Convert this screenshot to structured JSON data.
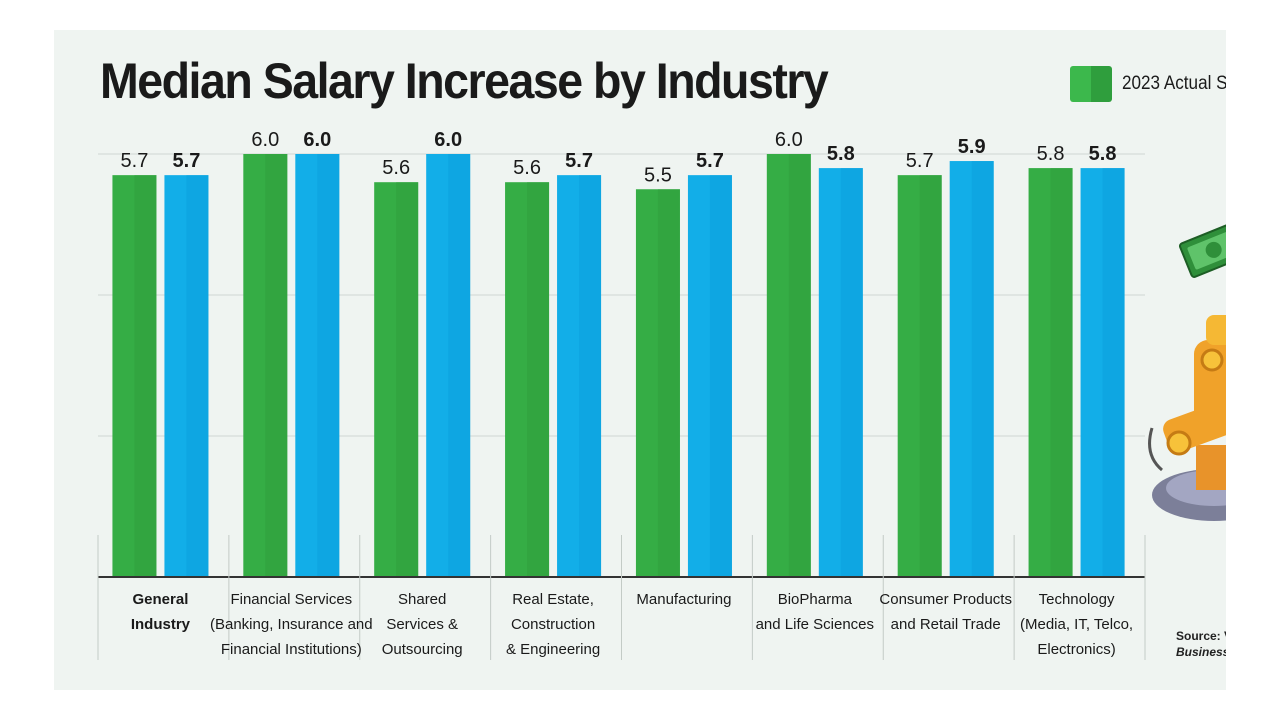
{
  "chart_data": {
    "type": "bar",
    "title": "Median Salary Increase by Industry",
    "categories": [
      [
        "General",
        "Industry"
      ],
      [
        "Financial Services",
        "(Banking, Insurance and",
        "Financial Institutions)"
      ],
      [
        "Shared",
        "Services &",
        "Outsourcing"
      ],
      [
        "Real Estate,",
        "Construction",
        "& Engineering"
      ],
      [
        "Manufacturing"
      ],
      [
        "BioPharma",
        "and Life Sciences"
      ],
      [
        "Consumer Products",
        "and Retail Trade"
      ],
      [
        "Technology",
        "(Media, IT, Telco,",
        "Electronics)"
      ]
    ],
    "series": [
      {
        "name": "2023 Actual S",
        "color": "#35ad45",
        "values": [
          5.7,
          6.0,
          5.6,
          5.6,
          5.5,
          6.0,
          5.7,
          5.8
        ],
        "labels": [
          "5.7",
          "6.0",
          "5.6",
          "5.6",
          "5.5",
          "6.0",
          "5.7",
          "5.8"
        ]
      },
      {
        "name": "",
        "color": "#12aee8",
        "values": [
          5.7,
          6.0,
          6.0,
          5.7,
          5.7,
          5.8,
          5.9,
          5.8
        ],
        "labels": [
          "5.7",
          "6.0",
          "6.0",
          "5.7",
          "5.7",
          "5.8",
          "5.9",
          "5.8"
        ]
      }
    ],
    "ylim": [
      0,
      6.0
    ],
    "grid": true,
    "legend": "top-right",
    "xlabel": "",
    "ylabel": ""
  },
  "source": {
    "label": "Source: V",
    "publisher": "Business"
  },
  "illustration": {
    "name": "money-robot-illustration"
  }
}
